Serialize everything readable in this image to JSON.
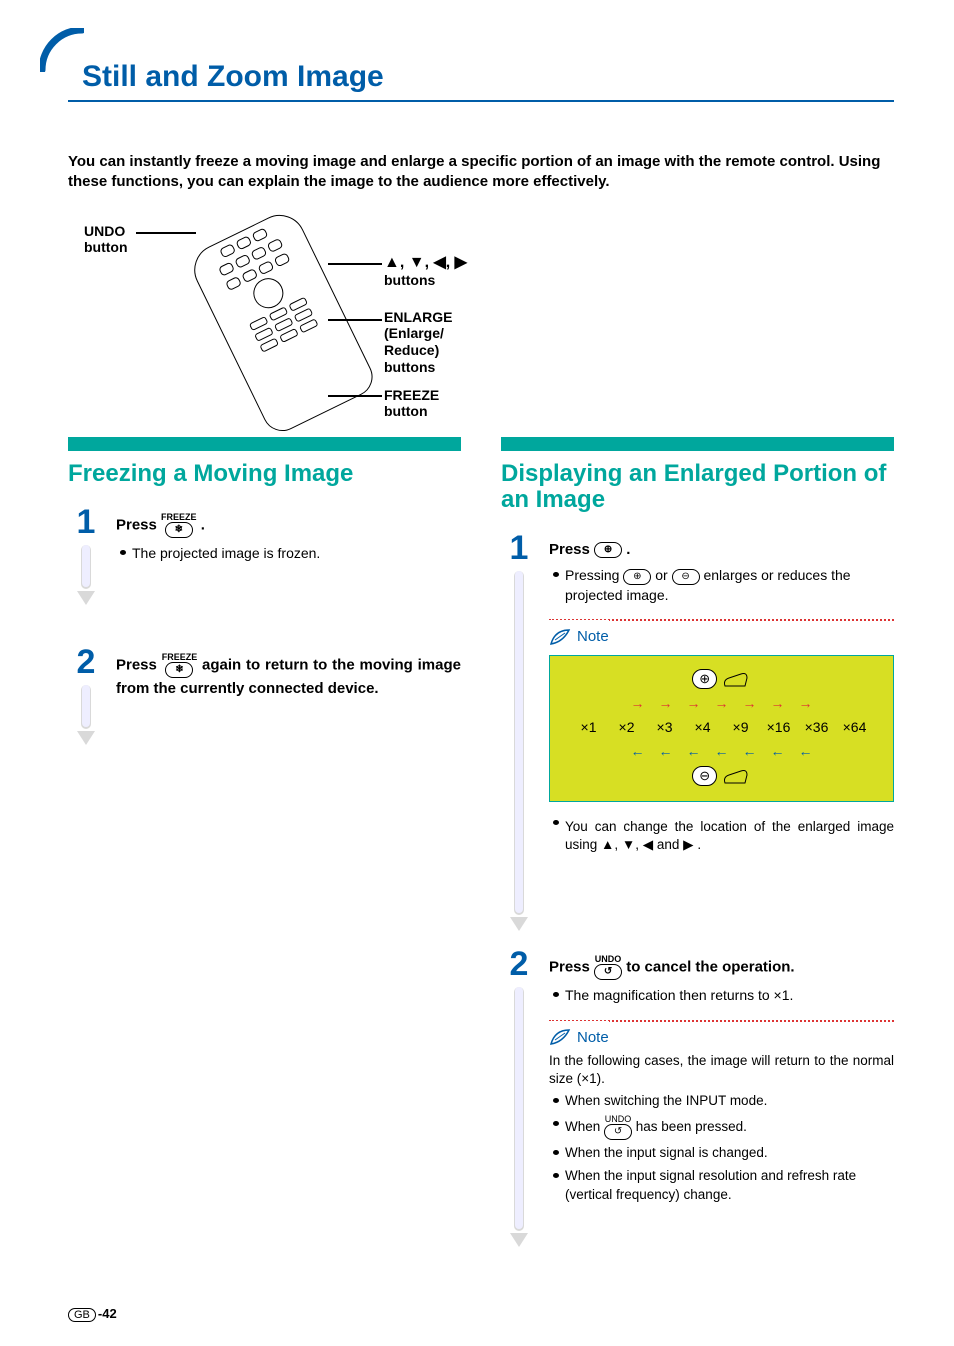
{
  "page": {
    "title": "Still and Zoom Image",
    "intro": "You can instantly freeze a moving image and enlarge a specific portion of an image with the remote control. Using these functions, you can explain the image to the audience more effectively.",
    "page_number_prefix": "GB",
    "page_number": "-42"
  },
  "colors": {
    "brand_blue": "#005da8",
    "teal": "#00a79d",
    "yellow_green": "#d7df23",
    "red_dot": "#d33",
    "text": "#000000",
    "background": "#ffffff"
  },
  "diagram": {
    "undo_label_line1": "UNDO",
    "undo_label_line2": "button",
    "arrow_buttons_label": "buttons",
    "arrow_icons": "▲, ▼, ◀, ▶",
    "enlarge_label_line1": "ENLARGE",
    "enlarge_label_line2": "(Enlarge/",
    "enlarge_label_line3": "Reduce)",
    "enlarge_label_line4": "buttons",
    "freeze_label_line1": "FREEZE",
    "freeze_label_line2": "button"
  },
  "left_section": {
    "title": "Freezing a Moving Image",
    "steps": [
      {
        "num": "1",
        "press": "Press ",
        "btn_top_label": "FREEZE",
        "btn_glyph": "❄",
        "after": ".",
        "detail": "The projected image is frozen."
      },
      {
        "num": "2",
        "press": "Press ",
        "btn_top_label": "FREEZE",
        "btn_glyph": "❄",
        "after": " again to return to the moving image from the currently connected device."
      }
    ]
  },
  "right_section": {
    "title": "Displaying an Enlarged Portion of an Image",
    "step1": {
      "num": "1",
      "press": "Press ",
      "btn_glyph": "⊕",
      "after": ".",
      "detail_pre": "Pressing ",
      "btn_plus": "⊕",
      "detail_mid": " or ",
      "btn_minus": "⊖",
      "detail_post": " enlarges or reduces the projected image.",
      "note_label": "Note",
      "zoom_levels": [
        "×1",
        "×2",
        "×3",
        "×4",
        "×9",
        "×16",
        "×36",
        "×64"
      ],
      "right_arrow": "→",
      "left_arrow": "←",
      "move_note_pre": "You can change the location of the enlarged image using ",
      "move_icons": "▲, ▼, ◀ and ▶",
      "move_note_post": "."
    },
    "step2": {
      "num": "2",
      "press": "Press ",
      "btn_top_label": "UNDO",
      "btn_glyph": "↺",
      "after": " to cancel the operation.",
      "detail": "The magnification then returns to ×1.",
      "note_label": "Note",
      "note_intro": "In the following cases, the image will return to the normal size (×1).",
      "bullets": [
        "When switching the INPUT mode.",
        {
          "pre": "When ",
          "btn_top_label": "UNDO",
          "btn_glyph": "↺",
          "post": " has been pressed."
        },
        "When the input signal is changed.",
        "When the input signal resolution and refresh rate (vertical frequency) change."
      ]
    }
  }
}
